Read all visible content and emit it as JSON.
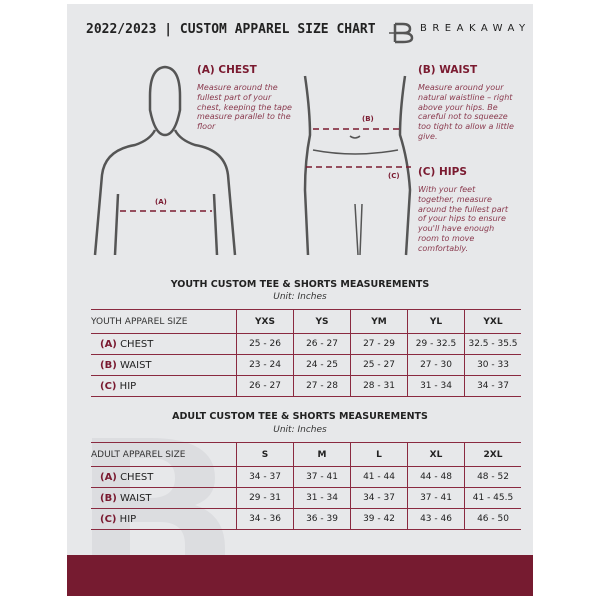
{
  "header": {
    "title": "2022/2023 | CUSTOM APPAREL SIZE CHART",
    "brand": "BREAKAWAY"
  },
  "colors": {
    "accent": "#761b30",
    "background": "#e7e8ea"
  },
  "guide": {
    "chest": {
      "title": "(A) CHEST",
      "marker": "(A)",
      "text": "Measure around the fullest part of your chest, keeping the tape measure parallel to the floor"
    },
    "waist": {
      "title": "(B) WAIST",
      "marker": "(B)",
      "text": "Measure around your natural waistline – right above your hips. Be careful not to squeeze too tight to allow a little give."
    },
    "hips": {
      "title": "(C) HIPS",
      "marker": "(C)",
      "text": "With your feet together, measure around the fullest part of your hips to ensure you'll have enough room to move comfortably."
    }
  },
  "youth": {
    "title": "YOUTH CUSTOM TEE & SHORTS MEASUREMENTS",
    "unit": "Unit: Inches",
    "header": "YOUTH APPAREL SIZE",
    "sizes": [
      "YXS",
      "YS",
      "YM",
      "YL",
      "YXL"
    ],
    "rows": [
      {
        "letter": "(A)",
        "label": "CHEST",
        "values": [
          "25 - 26",
          "26 - 27",
          "27 - 29",
          "29 - 32.5",
          "32.5 - 35.5"
        ]
      },
      {
        "letter": "(B)",
        "label": "WAIST",
        "values": [
          "23 - 24",
          "24 - 25",
          "25 - 27",
          "27 - 30",
          "30 - 33"
        ]
      },
      {
        "letter": "(C)",
        "label": "HIP",
        "values": [
          "26 - 27",
          "27 - 28",
          "28 - 31",
          "31 - 34",
          "34 - 37"
        ]
      }
    ]
  },
  "adult": {
    "title": "ADULT CUSTOM TEE & SHORTS MEASUREMENTS",
    "unit": "Unit: Inches",
    "header": "ADULT APPAREL SIZE",
    "sizes": [
      "S",
      "M",
      "L",
      "XL",
      "2XL"
    ],
    "rows": [
      {
        "letter": "(A)",
        "label": "CHEST",
        "values": [
          "34 - 37",
          "37 - 41",
          "41 - 44",
          "44 - 48",
          "48 - 52"
        ]
      },
      {
        "letter": "(B)",
        "label": "WAIST",
        "values": [
          "29 - 31",
          "31 - 34",
          "34 - 37",
          "37 - 41",
          "41 - 45.5"
        ]
      },
      {
        "letter": "(C)",
        "label": "HIP",
        "values": [
          "34 - 36",
          "36 - 39",
          "39 - 42",
          "43 - 46",
          "46 - 50"
        ]
      }
    ]
  }
}
